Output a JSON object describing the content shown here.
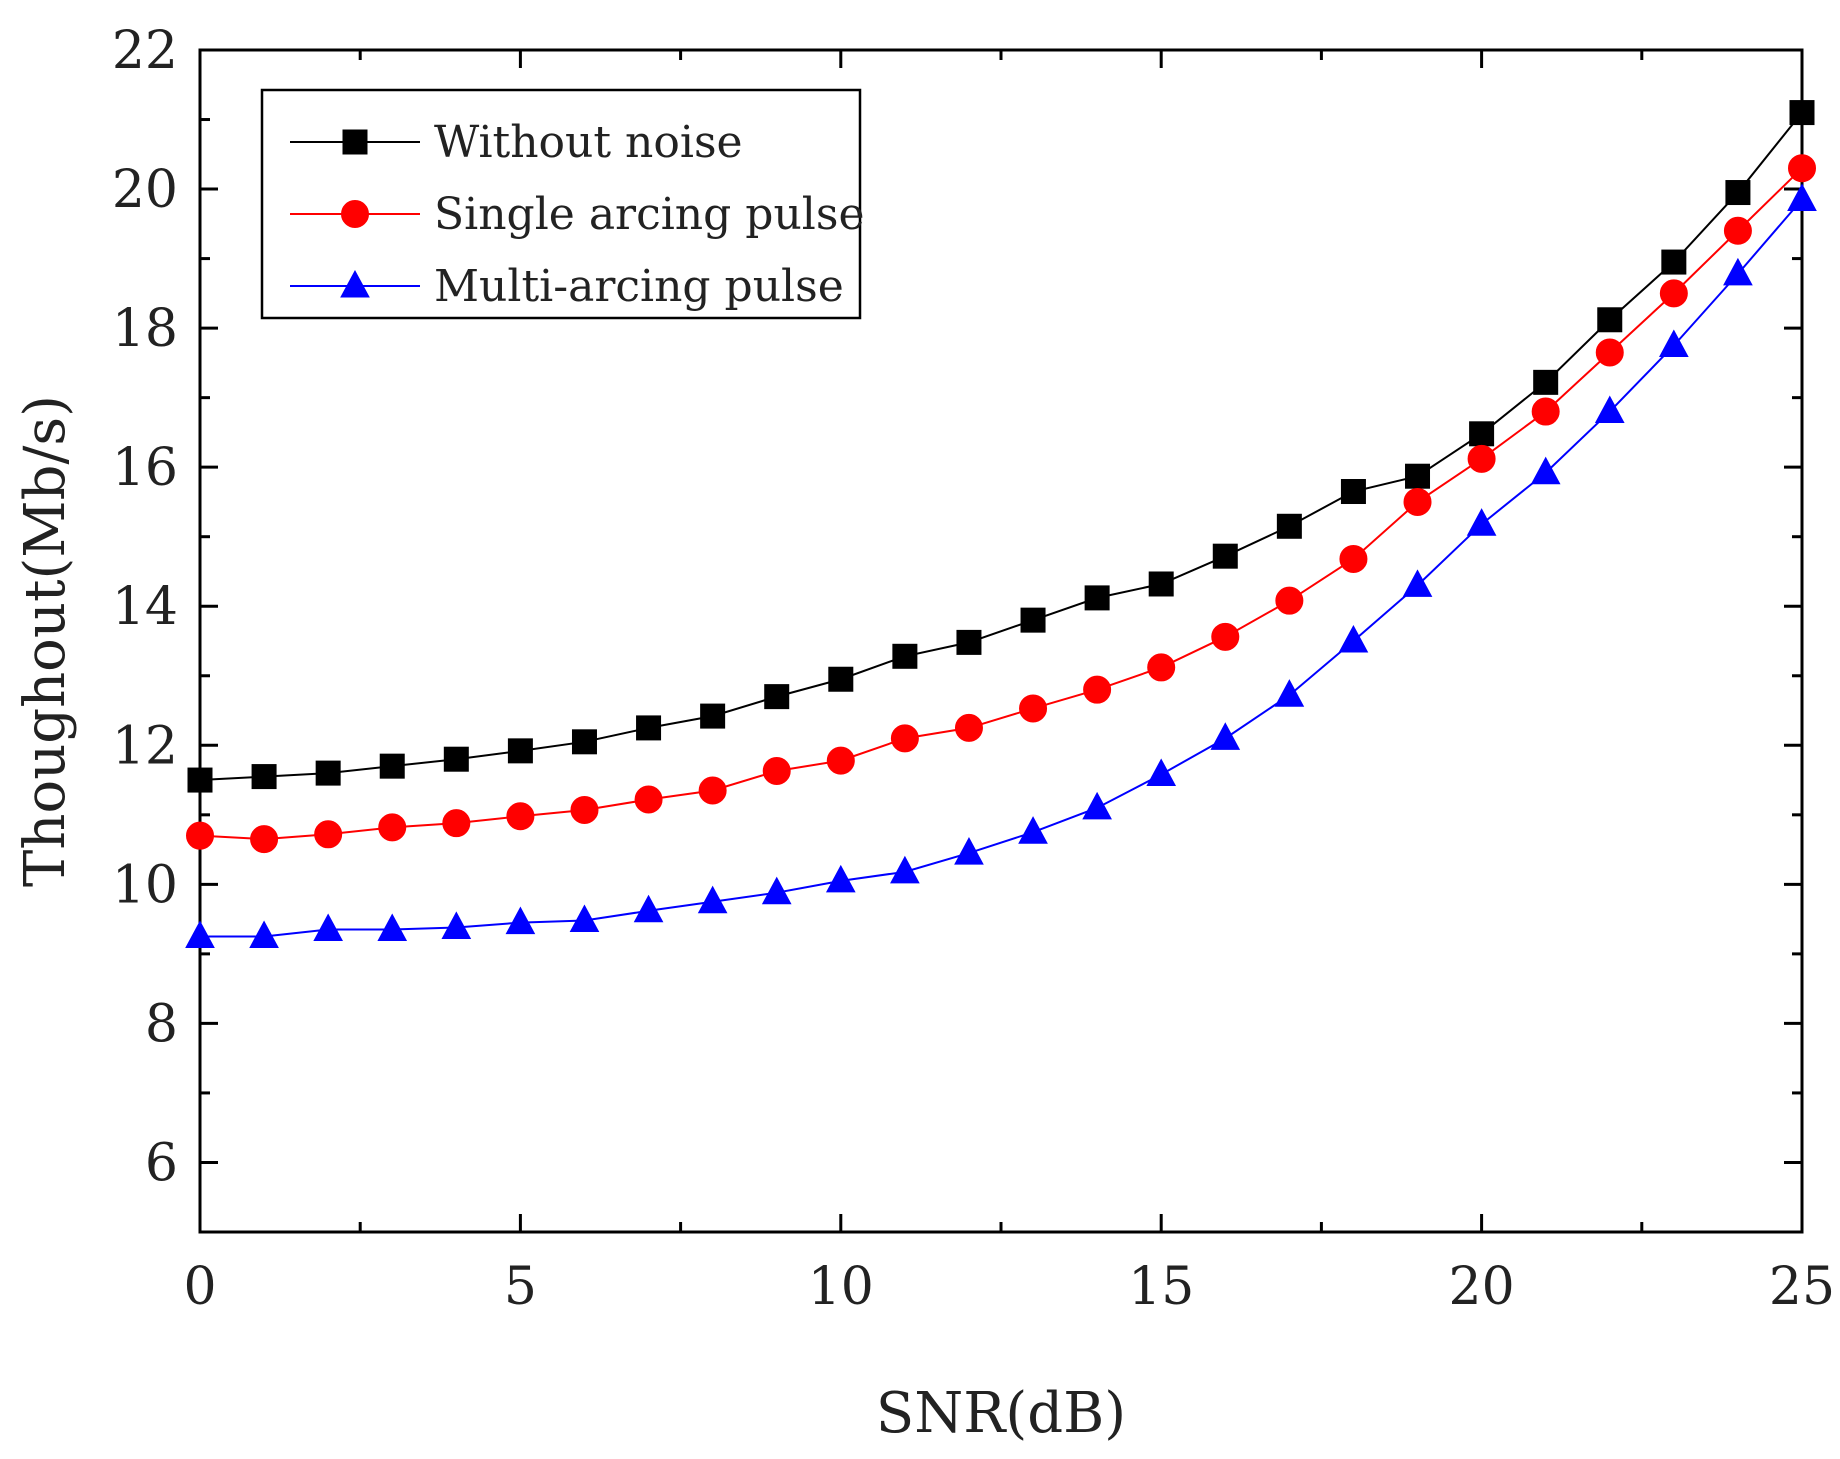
{
  "chart_data": {
    "type": "line",
    "title": "",
    "xlabel": "SNR(dB)",
    "ylabel": "Thoughout(Mb/s)",
    "xlim": [
      0,
      25
    ],
    "ylim": [
      5,
      22
    ],
    "xticks": [
      0,
      5,
      10,
      15,
      20,
      25
    ],
    "yticks": [
      6,
      8,
      10,
      12,
      14,
      16,
      18,
      20,
      22
    ],
    "grid": false,
    "legend_position": "top-left",
    "x": [
      0,
      1,
      2,
      3,
      4,
      5,
      6,
      7,
      8,
      9,
      10,
      11,
      12,
      13,
      14,
      15,
      16,
      17,
      18,
      19,
      20,
      21,
      22,
      23,
      24,
      25
    ],
    "series": [
      {
        "name": "Without noise",
        "color": "#000000",
        "marker": "square",
        "values": [
          11.5,
          11.55,
          11.6,
          11.7,
          11.8,
          11.92,
          12.05,
          12.25,
          12.42,
          12.7,
          12.95,
          13.28,
          13.48,
          13.8,
          14.12,
          14.32,
          14.72,
          15.15,
          15.65,
          15.87,
          16.48,
          17.22,
          18.12,
          18.95,
          19.95,
          21.1
        ]
      },
      {
        "name": "Single arcing pulse",
        "color": "#ff0000",
        "marker": "circle",
        "values": [
          10.7,
          10.65,
          10.72,
          10.82,
          10.88,
          10.98,
          11.07,
          11.22,
          11.35,
          11.63,
          11.78,
          12.1,
          12.25,
          12.53,
          12.8,
          13.12,
          13.56,
          14.08,
          14.68,
          15.5,
          16.12,
          16.8,
          17.65,
          18.5,
          19.4,
          20.3
        ]
      },
      {
        "name": "Multi-arcing pulse",
        "color": "#0000ff",
        "marker": "triangle",
        "values": [
          9.25,
          9.25,
          9.35,
          9.35,
          9.38,
          9.45,
          9.48,
          9.62,
          9.75,
          9.88,
          10.05,
          10.18,
          10.45,
          10.75,
          11.1,
          11.58,
          12.1,
          12.72,
          13.5,
          14.3,
          15.18,
          15.92,
          16.8,
          17.75,
          18.78,
          19.85
        ]
      }
    ]
  }
}
